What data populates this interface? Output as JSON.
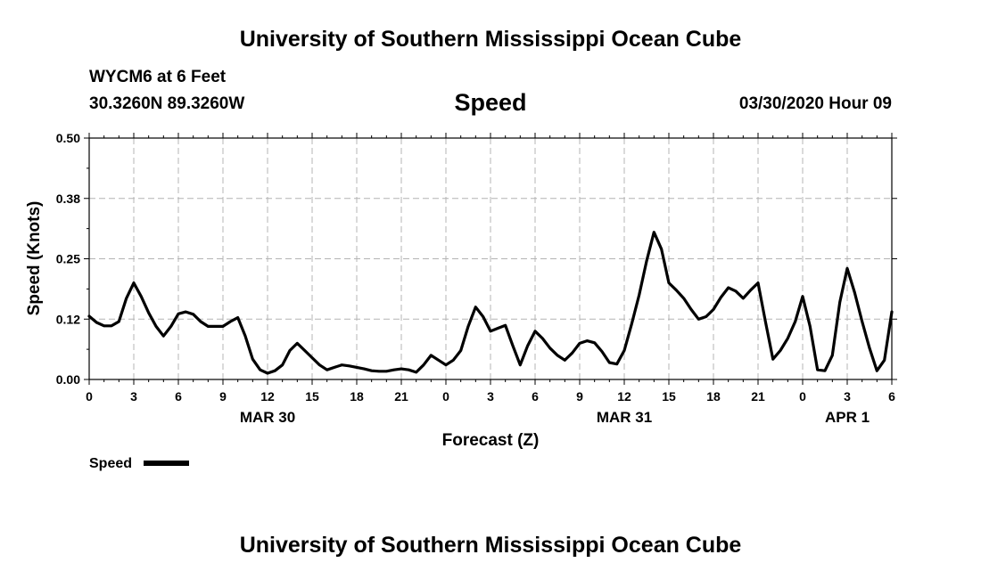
{
  "header": {
    "title": "University of Southern Mississippi Ocean Cube",
    "station": "WYCM6 at 6 Feet",
    "coordinates": "30.3260N 89.3260W",
    "parameter": "Speed",
    "datetime": "03/30/2020 Hour 09"
  },
  "footer": {
    "title": "University of Southern Mississippi Ocean Cube"
  },
  "chart_data": {
    "type": "line",
    "title": "Speed",
    "xlabel": "Forecast (Z)",
    "ylabel": "Speed (Knots)",
    "ylim": [
      0,
      0.5
    ],
    "xlim": [
      0,
      54
    ],
    "yticks": [
      {
        "value": 0.0,
        "label": "0.00"
      },
      {
        "value": 0.125,
        "label": "0.12"
      },
      {
        "value": 0.25,
        "label": "0.25"
      },
      {
        "value": 0.375,
        "label": "0.38"
      },
      {
        "value": 0.5,
        "label": "0.50"
      }
    ],
    "xticks": [
      {
        "x": 0,
        "label": "0"
      },
      {
        "x": 3,
        "label": "3"
      },
      {
        "x": 6,
        "label": "6"
      },
      {
        "x": 9,
        "label": "9"
      },
      {
        "x": 12,
        "label": "12"
      },
      {
        "x": 15,
        "label": "15"
      },
      {
        "x": 18,
        "label": "18"
      },
      {
        "x": 21,
        "label": "21"
      },
      {
        "x": 24,
        "label": "0"
      },
      {
        "x": 27,
        "label": "3"
      },
      {
        "x": 30,
        "label": "6"
      },
      {
        "x": 33,
        "label": "9"
      },
      {
        "x": 36,
        "label": "12"
      },
      {
        "x": 39,
        "label": "15"
      },
      {
        "x": 42,
        "label": "18"
      },
      {
        "x": 45,
        "label": "21"
      },
      {
        "x": 48,
        "label": "0"
      },
      {
        "x": 51,
        "label": "3"
      },
      {
        "x": 54,
        "label": "6"
      }
    ],
    "date_labels": [
      {
        "x": 12,
        "label": "MAR 30"
      },
      {
        "x": 36,
        "label": "MAR 31"
      },
      {
        "x": 51,
        "label": "APR 1"
      }
    ],
    "grid": true,
    "legend": {
      "position": "bottom-left",
      "label": "Speed"
    },
    "series": [
      {
        "name": "Speed",
        "color": "#000000",
        "x": [
          0,
          0.5,
          1,
          1.5,
          2,
          2.5,
          3,
          3.5,
          4,
          4.5,
          5,
          5.5,
          6,
          6.5,
          7,
          7.5,
          8,
          8.5,
          9,
          9.5,
          10,
          10.5,
          11,
          11.5,
          12,
          12.5,
          13,
          13.5,
          14,
          14.5,
          15,
          15.5,
          16,
          16.5,
          17,
          17.5,
          18,
          18.5,
          19,
          19.5,
          20,
          20.5,
          21,
          21.5,
          22,
          22.5,
          23,
          23.5,
          24,
          24.5,
          25,
          25.5,
          26,
          26.5,
          27,
          27.5,
          28,
          28.5,
          29,
          29.5,
          30,
          30.5,
          31,
          31.5,
          32,
          32.5,
          33,
          33.5,
          34,
          34.5,
          35,
          35.5,
          36,
          36.5,
          37,
          37.5,
          38,
          38.5,
          39,
          39.5,
          40,
          40.5,
          41,
          41.5,
          42,
          42.5,
          43,
          43.5,
          44,
          44.5,
          45,
          45.5,
          46,
          46.5,
          47,
          47.5,
          48,
          48.5,
          49,
          49.5,
          50,
          50.5,
          51,
          51.5,
          52,
          52.5,
          53,
          53.5,
          54
        ],
        "values": [
          0.131,
          0.118,
          0.111,
          0.111,
          0.12,
          0.168,
          0.2,
          0.172,
          0.138,
          0.11,
          0.09,
          0.11,
          0.136,
          0.14,
          0.135,
          0.12,
          0.11,
          0.11,
          0.11,
          0.12,
          0.128,
          0.09,
          0.042,
          0.02,
          0.013,
          0.018,
          0.03,
          0.06,
          0.075,
          0.06,
          0.045,
          0.03,
          0.02,
          0.025,
          0.03,
          0.028,
          0.025,
          0.022,
          0.018,
          0.017,
          0.017,
          0.02,
          0.022,
          0.02,
          0.015,
          0.03,
          0.05,
          0.04,
          0.03,
          0.04,
          0.06,
          0.11,
          0.15,
          0.13,
          0.1,
          0.106,
          0.112,
          0.07,
          0.03,
          0.07,
          0.1,
          0.085,
          0.065,
          0.05,
          0.04,
          0.055,
          0.075,
          0.08,
          0.076,
          0.058,
          0.035,
          0.032,
          0.06,
          0.115,
          0.175,
          0.245,
          0.305,
          0.27,
          0.2,
          0.185,
          0.168,
          0.145,
          0.125,
          0.13,
          0.145,
          0.17,
          0.19,
          0.183,
          0.168,
          0.185,
          0.2,
          0.12,
          0.042,
          0.06,
          0.085,
          0.12,
          0.172,
          0.11,
          0.02,
          0.018,
          0.05,
          0.16,
          0.23,
          0.18,
          0.12,
          0.065,
          0.018,
          0.04,
          0.14
        ]
      }
    ]
  }
}
